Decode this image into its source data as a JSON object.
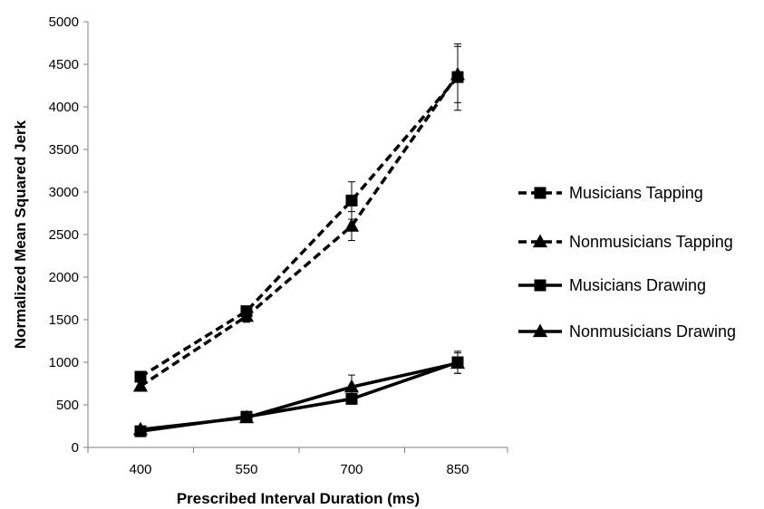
{
  "chart_data": {
    "type": "line",
    "title": "",
    "xlabel": "Prescribed Interval Duration (ms)",
    "ylabel": "Normalized Mean Squared Jerk",
    "categories": [
      "400",
      "550",
      "700",
      "850"
    ],
    "ylim": [
      0,
      5000
    ],
    "yticks": [
      0,
      500,
      1000,
      1500,
      2000,
      2500,
      3000,
      3500,
      4000,
      4500,
      5000
    ],
    "grid": false,
    "legend_position": "right",
    "series": [
      {
        "name": "Musicians Tapping",
        "values": [
          830,
          1600,
          2900,
          4350
        ],
        "errors": [
          null,
          null,
          220,
          390
        ],
        "marker": "square",
        "line_style": "dashed",
        "color": "#000000"
      },
      {
        "name": "Nonmusicians Tapping",
        "values": [
          720,
          1540,
          2600,
          4380
        ],
        "errors": [
          null,
          70,
          170,
          330
        ],
        "marker": "triangle",
        "line_style": "dashed",
        "color": "#000000"
      },
      {
        "name": "Musicians Drawing",
        "values": [
          190,
          360,
          570,
          1000
        ],
        "errors": [
          null,
          null,
          null,
          130
        ],
        "marker": "square",
        "line_style": "solid",
        "color": "#000000"
      },
      {
        "name": "Nonmusicians Drawing",
        "values": [
          210,
          350,
          710,
          990
        ],
        "errors": [
          null,
          null,
          140,
          120
        ],
        "marker": "triangle",
        "line_style": "solid",
        "color": "#000000"
      }
    ]
  }
}
